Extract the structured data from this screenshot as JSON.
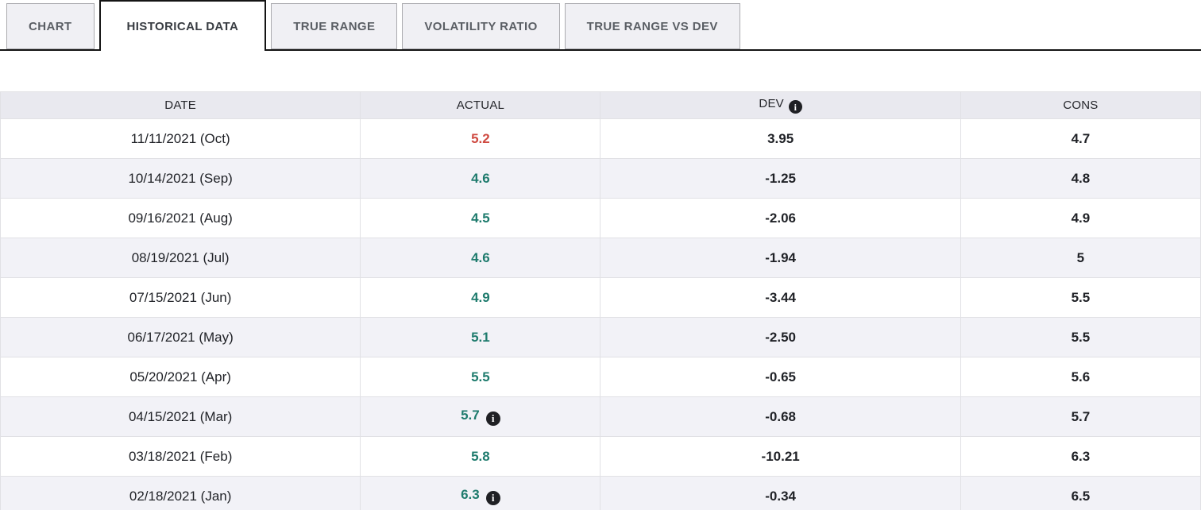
{
  "tabs": [
    {
      "label": "CHART",
      "active": false
    },
    {
      "label": "HISTORICAL DATA",
      "active": true
    },
    {
      "label": "TRUE RANGE",
      "active": false
    },
    {
      "label": "VOLATILITY RATIO",
      "active": false
    },
    {
      "label": "TRUE RANGE VS DEV",
      "active": false
    }
  ],
  "table": {
    "columns": [
      "DATE",
      "ACTUAL",
      "DEV",
      "CONS"
    ],
    "dev_header_icon": "info-icon",
    "rows": [
      {
        "date": "11/11/2021 (Oct)",
        "actual": "5.2",
        "actual_style": "red",
        "actual_info": false,
        "dev": "3.95",
        "cons": "4.7"
      },
      {
        "date": "10/14/2021 (Sep)",
        "actual": "4.6",
        "actual_style": "green",
        "actual_info": false,
        "dev": "-1.25",
        "cons": "4.8"
      },
      {
        "date": "09/16/2021 (Aug)",
        "actual": "4.5",
        "actual_style": "green",
        "actual_info": false,
        "dev": "-2.06",
        "cons": "4.9"
      },
      {
        "date": "08/19/2021 (Jul)",
        "actual": "4.6",
        "actual_style": "green",
        "actual_info": false,
        "dev": "-1.94",
        "cons": "5"
      },
      {
        "date": "07/15/2021 (Jun)",
        "actual": "4.9",
        "actual_style": "green",
        "actual_info": false,
        "dev": "-3.44",
        "cons": "5.5"
      },
      {
        "date": "06/17/2021 (May)",
        "actual": "5.1",
        "actual_style": "green",
        "actual_info": false,
        "dev": "-2.50",
        "cons": "5.5"
      },
      {
        "date": "05/20/2021 (Apr)",
        "actual": "5.5",
        "actual_style": "green",
        "actual_info": false,
        "dev": "-0.65",
        "cons": "5.6"
      },
      {
        "date": "04/15/2021 (Mar)",
        "actual": "5.7",
        "actual_style": "green",
        "actual_info": true,
        "dev": "-0.68",
        "cons": "5.7"
      },
      {
        "date": "03/18/2021 (Feb)",
        "actual": "5.8",
        "actual_style": "green",
        "actual_info": false,
        "dev": "-10.21",
        "cons": "6.3"
      },
      {
        "date": "02/18/2021 (Jan)",
        "actual": "6.3",
        "actual_style": "green",
        "actual_info": true,
        "dev": "-0.34",
        "cons": "6.5"
      }
    ]
  },
  "icons": {
    "info_glyph": "i"
  },
  "colors": {
    "actual_negative_red": "#cf4a41",
    "actual_positive_teal": "#1e7b6d",
    "tab_border_active": "#141414",
    "header_bg": "#e9e9ef",
    "stripe_bg": "#f2f2f7"
  }
}
